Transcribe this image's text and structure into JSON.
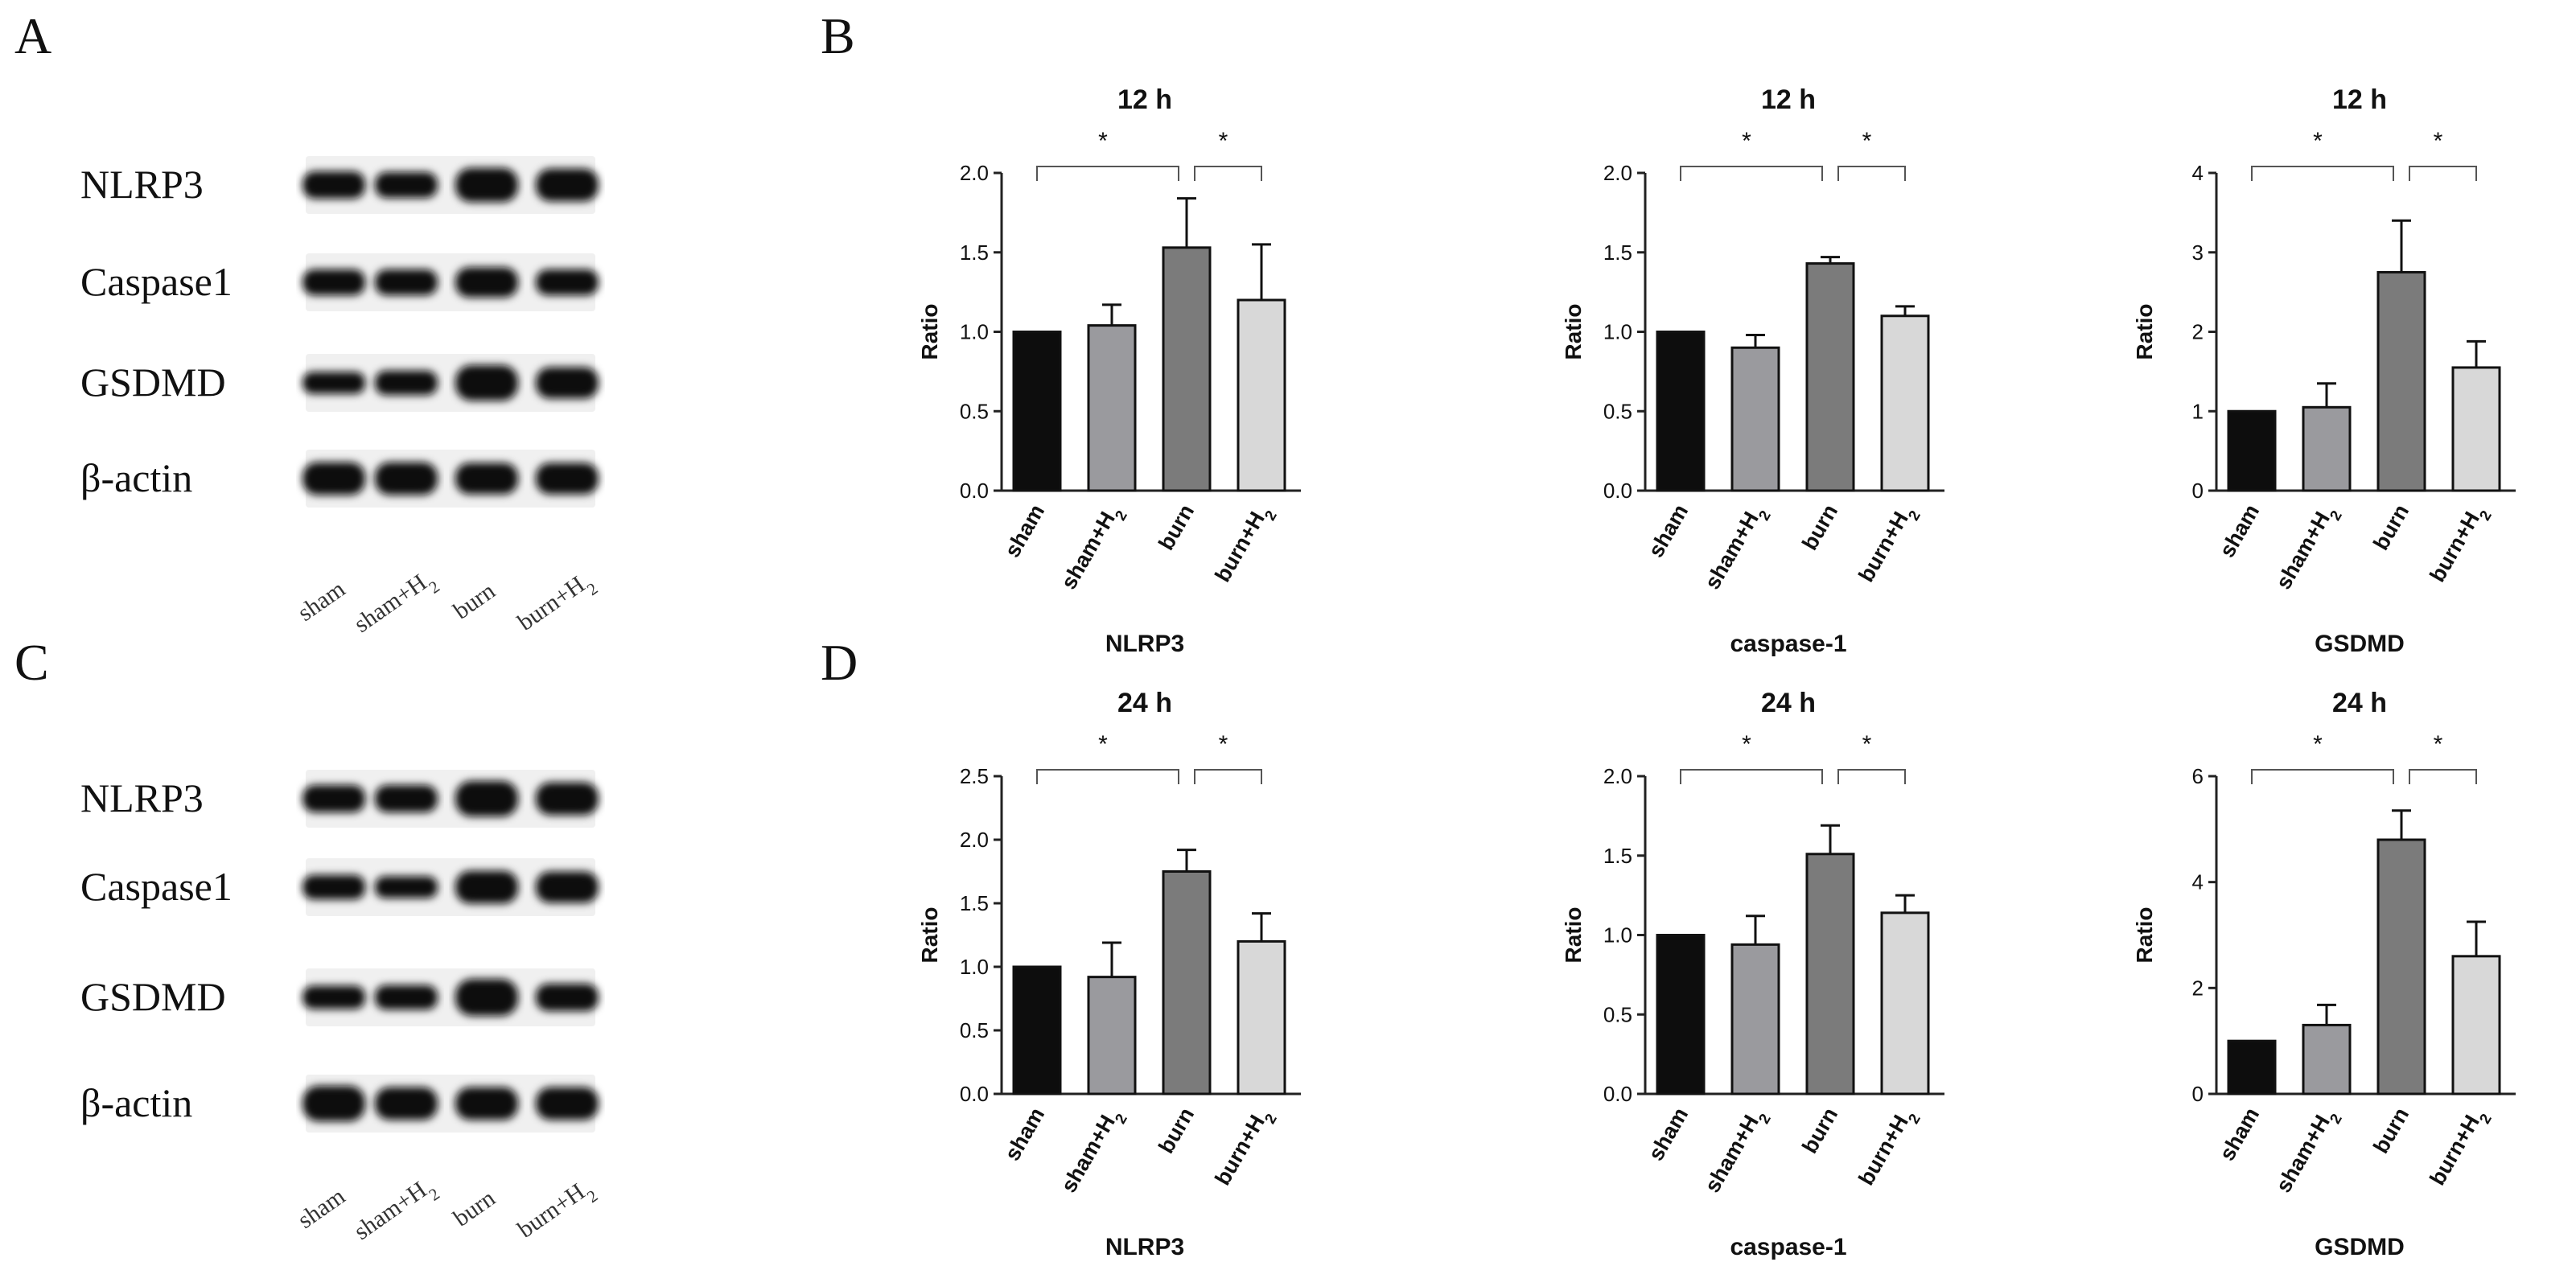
{
  "panels": {
    "a": "A",
    "b": "B",
    "c": "C",
    "d": "D"
  },
  "blots": [
    {
      "labels": [
        "NLRP3",
        "Caspase1",
        "GSDMD",
        "β-actin"
      ],
      "lanes": [
        "sham",
        "sham+H2",
        "burn",
        "burn+H2"
      ],
      "intensities": [
        [
          1.0,
          0.95,
          1.25,
          1.2
        ],
        [
          0.95,
          0.95,
          1.1,
          0.95
        ],
        [
          0.8,
          0.9,
          1.3,
          1.15
        ],
        [
          1.2,
          1.2,
          1.15,
          1.15
        ]
      ]
    },
    {
      "labels": [
        "NLRP3",
        "Caspase1",
        "GSDMD",
        "β-actin"
      ],
      "lanes": [
        "sham",
        "sham+H2",
        "burn",
        "burn+H2"
      ],
      "intensities": [
        [
          1.0,
          1.0,
          1.3,
          1.2
        ],
        [
          0.9,
          0.8,
          1.2,
          1.15
        ],
        [
          0.85,
          0.9,
          1.35,
          1.0
        ],
        [
          1.3,
          1.2,
          1.2,
          1.2
        ]
      ]
    }
  ],
  "chart_data": [
    {
      "type": "bar",
      "title": "12 h",
      "xlabel": "NLRP3",
      "ylabel": "Ratio",
      "categories": [
        "sham",
        "sham+H2",
        "burn",
        "burn+H2"
      ],
      "values": [
        1.0,
        1.04,
        1.53,
        1.2
      ],
      "errors": [
        0,
        0.13,
        0.31,
        0.35
      ],
      "ylim": [
        0,
        2.0
      ],
      "yticks": [
        "0.0",
        "0.5",
        "1.0",
        "1.5",
        "2.0"
      ],
      "significance": [
        {
          "from": 0,
          "to": 2,
          "label": "*"
        },
        {
          "from": 2,
          "to": 3,
          "label": "*"
        }
      ]
    },
    {
      "type": "bar",
      "title": "12 h",
      "xlabel": "caspase-1",
      "ylabel": "Ratio",
      "categories": [
        "sham",
        "sham+H2",
        "burn",
        "burn+H2"
      ],
      "values": [
        1.0,
        0.9,
        1.43,
        1.1
      ],
      "errors": [
        0,
        0.08,
        0.04,
        0.06
      ],
      "ylim": [
        0,
        2.0
      ],
      "yticks": [
        "0.0",
        "0.5",
        "1.0",
        "1.5",
        "2.0"
      ],
      "significance": [
        {
          "from": 0,
          "to": 2,
          "label": "*"
        },
        {
          "from": 2,
          "to": 3,
          "label": "*"
        }
      ]
    },
    {
      "type": "bar",
      "title": "12 h",
      "xlabel": "GSDMD",
      "ylabel": "Ratio",
      "categories": [
        "sham",
        "sham+H2",
        "burn",
        "burn+H2"
      ],
      "values": [
        1.0,
        1.05,
        2.75,
        1.55
      ],
      "errors": [
        0,
        0.3,
        0.65,
        0.33
      ],
      "ylim": [
        0,
        4
      ],
      "yticks": [
        "0",
        "1",
        "2",
        "3",
        "4"
      ],
      "significance": [
        {
          "from": 0,
          "to": 2,
          "label": "*"
        },
        {
          "from": 2,
          "to": 3,
          "label": "*"
        }
      ]
    },
    {
      "type": "bar",
      "title": "24 h",
      "xlabel": "NLRP3",
      "ylabel": "Ratio",
      "categories": [
        "sham",
        "sham+H2",
        "burn",
        "burn+H2"
      ],
      "values": [
        1.0,
        0.92,
        1.75,
        1.2
      ],
      "errors": [
        0,
        0.27,
        0.17,
        0.22
      ],
      "ylim": [
        0,
        2.5
      ],
      "yticks": [
        "0.0",
        "0.5",
        "1.0",
        "1.5",
        "2.0",
        "2.5"
      ],
      "significance": [
        {
          "from": 0,
          "to": 2,
          "label": "*"
        },
        {
          "from": 2,
          "to": 3,
          "label": "*"
        }
      ]
    },
    {
      "type": "bar",
      "title": "24 h",
      "xlabel": "caspase-1",
      "ylabel": "Ratio",
      "categories": [
        "sham",
        "sham+H2",
        "burn",
        "burn+H2"
      ],
      "values": [
        1.0,
        0.94,
        1.51,
        1.14
      ],
      "errors": [
        0,
        0.18,
        0.18,
        0.11
      ],
      "ylim": [
        0,
        2.0
      ],
      "yticks": [
        "0.0",
        "0.5",
        "1.0",
        "1.5",
        "2.0"
      ],
      "significance": [
        {
          "from": 0,
          "to": 2,
          "label": "*"
        },
        {
          "from": 2,
          "to": 3,
          "label": "*"
        }
      ]
    },
    {
      "type": "bar",
      "title": "24 h",
      "xlabel": "GSDMD",
      "ylabel": "Ratio",
      "categories": [
        "sham",
        "sham+H2",
        "burn",
        "burn+H2"
      ],
      "values": [
        1.0,
        1.3,
        4.8,
        2.6
      ],
      "errors": [
        0,
        0.38,
        0.55,
        0.65
      ],
      "ylim": [
        0,
        6
      ],
      "yticks": [
        "0",
        "2",
        "4",
        "6"
      ],
      "significance": [
        {
          "from": 0,
          "to": 2,
          "label": "*"
        },
        {
          "from": 2,
          "to": 3,
          "label": "*"
        }
      ]
    }
  ],
  "colors": {
    "bars": [
      "#0d0d0d",
      "#9a9a9e",
      "#7b7b7b",
      "#d8d8d8"
    ],
    "band": "#111111",
    "strip": "#f0f0f0",
    "axis": "#222222"
  }
}
